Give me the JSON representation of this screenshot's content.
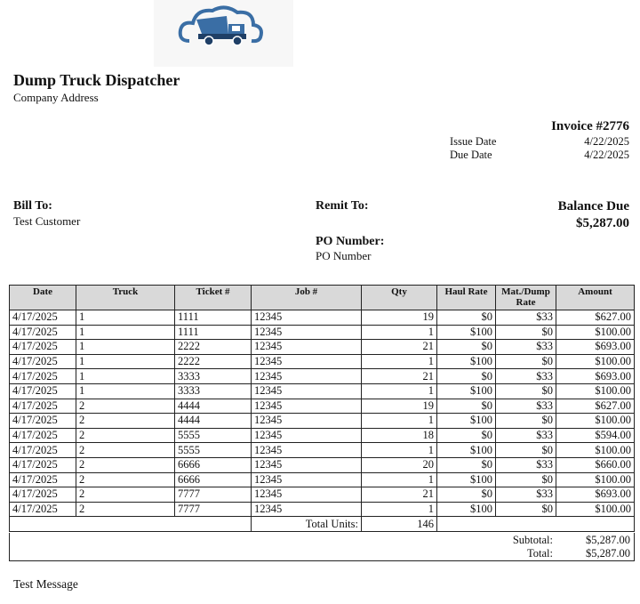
{
  "header": {
    "company": "Dump Truck Dispatcher",
    "address": "Company Address"
  },
  "invoice": {
    "title": "Invoice #2776",
    "issue_label": "Issue Date",
    "issue_date": "4/22/2025",
    "due_label": "Due Date",
    "due_date": "4/22/2025"
  },
  "bill_to": {
    "label": "Bill To:",
    "name": "Test Customer"
  },
  "remit_to": {
    "label": "Remit To:"
  },
  "po": {
    "label": "PO Number:",
    "value": "PO Number"
  },
  "balance": {
    "label": "Balance Due",
    "amount": "$5,287.00"
  },
  "table": {
    "columns": [
      "Date",
      "Truck",
      "Ticket #",
      "Job #",
      "Qty",
      "Haul Rate",
      "Mat./Dump Rate",
      "Amount"
    ],
    "rows": [
      [
        "4/17/2025",
        "1",
        "1111",
        "12345",
        "19",
        "$0",
        "$33",
        "$627.00"
      ],
      [
        "4/17/2025",
        "1",
        "1111",
        "12345",
        "1",
        "$100",
        "$0",
        "$100.00"
      ],
      [
        "4/17/2025",
        "1",
        "2222",
        "12345",
        "21",
        "$0",
        "$33",
        "$693.00"
      ],
      [
        "4/17/2025",
        "1",
        "2222",
        "12345",
        "1",
        "$100",
        "$0",
        "$100.00"
      ],
      [
        "4/17/2025",
        "1",
        "3333",
        "12345",
        "21",
        "$0",
        "$33",
        "$693.00"
      ],
      [
        "4/17/2025",
        "1",
        "3333",
        "12345",
        "1",
        "$100",
        "$0",
        "$100.00"
      ],
      [
        "4/17/2025",
        "2",
        "4444",
        "12345",
        "19",
        "$0",
        "$33",
        "$627.00"
      ],
      [
        "4/17/2025",
        "2",
        "4444",
        "12345",
        "1",
        "$100",
        "$0",
        "$100.00"
      ],
      [
        "4/17/2025",
        "2",
        "5555",
        "12345",
        "18",
        "$0",
        "$33",
        "$594.00"
      ],
      [
        "4/17/2025",
        "2",
        "5555",
        "12345",
        "1",
        "$100",
        "$0",
        "$100.00"
      ],
      [
        "4/17/2025",
        "2",
        "6666",
        "12345",
        "20",
        "$0",
        "$33",
        "$660.00"
      ],
      [
        "4/17/2025",
        "2",
        "6666",
        "12345",
        "1",
        "$100",
        "$0",
        "$100.00"
      ],
      [
        "4/17/2025",
        "2",
        "7777",
        "12345",
        "21",
        "$0",
        "$33",
        "$693.00"
      ],
      [
        "4/17/2025",
        "2",
        "7777",
        "12345",
        "1",
        "$100",
        "$0",
        "$100.00"
      ]
    ],
    "total_units_label": "Total Units:",
    "total_units": "146"
  },
  "totals": {
    "subtotal_label": "Subtotal:",
    "subtotal": "$5,287.00",
    "total_label": "Total:",
    "total": "$5,287.00"
  },
  "message": "Test Message"
}
